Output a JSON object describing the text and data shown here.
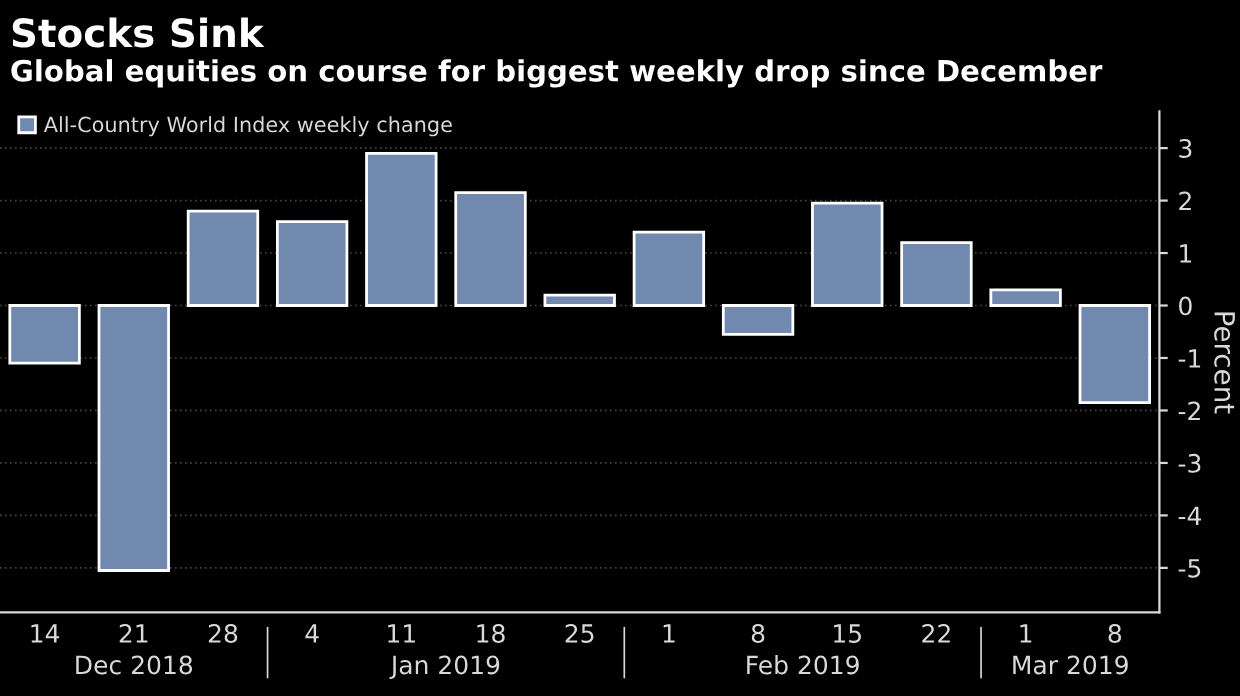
{
  "chart_data": {
    "type": "bar",
    "title": "Stocks Sink",
    "subtitle": "Global equities on course for biggest weekly drop since December",
    "ylabel": "Percent",
    "categories": [
      "14",
      "21",
      "28",
      "4",
      "11",
      "18",
      "25",
      "1",
      "8",
      "15",
      "22",
      "1",
      "8"
    ],
    "series": [
      {
        "name": "All-Country World Index weekly change",
        "color": "#7189ae",
        "values": [
          -1.1,
          -5.05,
          1.8,
          1.6,
          2.9,
          2.15,
          0.2,
          1.4,
          -0.55,
          1.95,
          1.2,
          0.3,
          -1.85
        ]
      }
    ],
    "annotations": [
      "Dec 2018",
      "Jan 2019",
      "Feb 2019",
      "Mar 2019"
    ],
    "ylim": [
      -5.85,
      3.7
    ],
    "yticks": [
      {
        "value": -5,
        "label": "-5"
      },
      {
        "value": -4,
        "label": "-4"
      },
      {
        "value": -3,
        "label": "-3"
      },
      {
        "value": -2,
        "label": "-2"
      },
      {
        "value": -1,
        "label": "-1"
      },
      0,
      1,
      2,
      3
    ],
    "grid": "y",
    "legend": "top left"
  }
}
